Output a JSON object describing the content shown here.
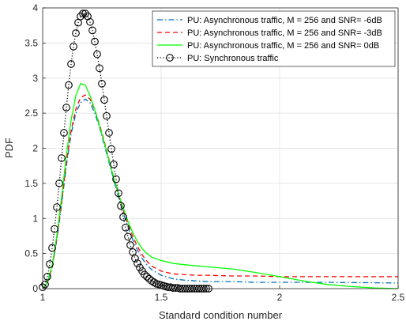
{
  "chart_data": {
    "type": "line",
    "xlabel": "Standard condition number",
    "ylabel": "PDF",
    "xlim": [
      1,
      2.5
    ],
    "ylim": [
      0,
      4
    ],
    "xticks": [
      {
        "v": 1,
        "label": "1"
      },
      {
        "v": 1.5,
        "label": "1.5"
      },
      {
        "v": 2,
        "label": "2"
      },
      {
        "v": 2.5,
        "label": "2.5"
      }
    ],
    "yticks": [
      {
        "v": 0,
        "label": "0"
      },
      {
        "v": 0.5,
        "label": "0.5"
      },
      {
        "v": 1,
        "label": "1"
      },
      {
        "v": 1.5,
        "label": "1.5"
      },
      {
        "v": 2,
        "label": "2"
      },
      {
        "v": 2.5,
        "label": "2.5"
      },
      {
        "v": 3,
        "label": "3"
      },
      {
        "v": 3.5,
        "label": "3.5"
      },
      {
        "v": 4,
        "label": "4"
      }
    ],
    "grid": true,
    "legend_position": "top-right",
    "series": [
      {
        "name": "PU: Asynchronous traffic, M = 256 and SNR= -6dB",
        "color": "#0072BD",
        "style": "dashdot",
        "x": [
          1.0,
          1.02,
          1.04,
          1.06,
          1.08,
          1.1,
          1.12,
          1.14,
          1.16,
          1.18,
          1.2,
          1.22,
          1.24,
          1.26,
          1.28,
          1.3,
          1.32,
          1.34,
          1.36,
          1.38,
          1.4,
          1.42,
          1.44,
          1.46,
          1.5,
          1.55,
          1.6,
          1.65,
          1.7,
          1.8,
          1.9,
          2.0,
          2.2,
          2.5
        ],
        "y": [
          0.0,
          0.08,
          0.3,
          0.7,
          1.2,
          1.75,
          2.2,
          2.5,
          2.65,
          2.7,
          2.65,
          2.5,
          2.3,
          2.05,
          1.8,
          1.55,
          1.3,
          1.08,
          0.88,
          0.7,
          0.55,
          0.43,
          0.34,
          0.27,
          0.19,
          0.14,
          0.12,
          0.11,
          0.1,
          0.1,
          0.09,
          0.09,
          0.09,
          0.08
        ]
      },
      {
        "name": "PU: Asynchronous traffic, M = 256 and SNR= -3dB",
        "color": "#FF0000",
        "style": "dashed",
        "x": [
          1.0,
          1.02,
          1.04,
          1.06,
          1.08,
          1.1,
          1.12,
          1.14,
          1.16,
          1.18,
          1.2,
          1.22,
          1.24,
          1.26,
          1.28,
          1.3,
          1.32,
          1.34,
          1.36,
          1.38,
          1.4,
          1.42,
          1.44,
          1.46,
          1.5,
          1.55,
          1.6,
          1.65,
          1.7,
          1.8,
          1.9,
          2.0,
          2.2,
          2.5
        ],
        "y": [
          0.0,
          0.08,
          0.3,
          0.72,
          1.23,
          1.8,
          2.25,
          2.56,
          2.72,
          2.76,
          2.7,
          2.55,
          2.34,
          2.1,
          1.84,
          1.58,
          1.34,
          1.12,
          0.92,
          0.75,
          0.6,
          0.48,
          0.39,
          0.32,
          0.25,
          0.21,
          0.2,
          0.19,
          0.19,
          0.18,
          0.18,
          0.17,
          0.17,
          0.17
        ]
      },
      {
        "name": "PU: Asynchronous traffic, M = 256 and SNR= 0dB",
        "color": "#00FF00",
        "style": "solid",
        "x": [
          1.0,
          1.02,
          1.04,
          1.06,
          1.08,
          1.1,
          1.12,
          1.14,
          1.16,
          1.18,
          1.2,
          1.22,
          1.24,
          1.26,
          1.28,
          1.3,
          1.32,
          1.34,
          1.36,
          1.38,
          1.4,
          1.42,
          1.44,
          1.46,
          1.5,
          1.55,
          1.6,
          1.7,
          1.8,
          1.9,
          2.0,
          2.1,
          2.2,
          2.3,
          2.4,
          2.5
        ],
        "y": [
          0.0,
          0.09,
          0.33,
          0.76,
          1.3,
          1.9,
          2.4,
          2.75,
          2.92,
          2.9,
          2.75,
          2.55,
          2.32,
          2.08,
          1.83,
          1.58,
          1.35,
          1.15,
          0.96,
          0.8,
          0.67,
          0.57,
          0.5,
          0.45,
          0.4,
          0.36,
          0.34,
          0.31,
          0.28,
          0.23,
          0.17,
          0.11,
          0.06,
          0.03,
          0.01,
          0.0
        ]
      },
      {
        "name": "PU: Synchronous traffic",
        "color": "#000000",
        "style": "dotted-circles",
        "x": [
          1.0,
          1.01,
          1.02,
          1.03,
          1.04,
          1.05,
          1.06,
          1.07,
          1.08,
          1.09,
          1.1,
          1.11,
          1.12,
          1.13,
          1.14,
          1.15,
          1.16,
          1.17,
          1.18,
          1.19,
          1.2,
          1.21,
          1.22,
          1.23,
          1.24,
          1.25,
          1.26,
          1.27,
          1.28,
          1.29,
          1.3,
          1.31,
          1.32,
          1.33,
          1.34,
          1.35,
          1.36,
          1.37,
          1.38,
          1.39,
          1.4,
          1.41,
          1.42,
          1.43,
          1.44,
          1.45,
          1.46,
          1.47,
          1.48,
          1.49,
          1.5,
          1.51,
          1.52,
          1.53,
          1.54,
          1.55,
          1.56,
          1.57,
          1.58,
          1.59,
          1.6,
          1.61,
          1.62,
          1.63,
          1.64,
          1.65,
          1.66,
          1.67,
          1.68,
          1.69,
          1.7
        ],
        "y": [
          0.02,
          0.06,
          0.17,
          0.35,
          0.58,
          0.85,
          1.16,
          1.5,
          1.86,
          2.22,
          2.58,
          2.9,
          3.2,
          3.45,
          3.64,
          3.79,
          3.88,
          3.92,
          3.92,
          3.88,
          3.8,
          3.68,
          3.52,
          3.34,
          3.14,
          2.92,
          2.69,
          2.46,
          2.22,
          1.99,
          1.77,
          1.56,
          1.36,
          1.18,
          1.02,
          0.87,
          0.74,
          0.62,
          0.52,
          0.43,
          0.36,
          0.3,
          0.25,
          0.2,
          0.17,
          0.14,
          0.11,
          0.09,
          0.07,
          0.06,
          0.05,
          0.04,
          0.03,
          0.02,
          0.02,
          0.01,
          0.01,
          0.01,
          0.0,
          0.0,
          0.0,
          0.0,
          0.0,
          0.0,
          0.0,
          0.0,
          0.0,
          0.0,
          0.0,
          0.0,
          0.0
        ]
      }
    ]
  }
}
